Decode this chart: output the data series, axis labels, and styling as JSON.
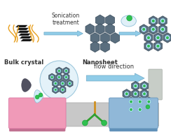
{
  "bg_color": "#ffffff",
  "sonication_label": "Sonication\ntreatment",
  "bulk_crystal_label": "Bulk crystal",
  "nanosheet_label": "Nanosheet",
  "flow_label": "flow direction",
  "hex_fc": "#5a6e7e",
  "hex_ec": "#3a4d5c",
  "bulk_color": "#111111",
  "bulk_line_color": "#333333",
  "wave_color": "#e8a020",
  "arrow_fc": "#90cce8",
  "arrow_ec": "#70aac8",
  "pink_pad": "#f09ab8",
  "blue_pad": "#90b8d8",
  "strip_fc": "#c8c8c8",
  "strip_ec": "#aaaaaa",
  "gray_pad": "#b0b8b0",
  "drop_fc": "#505060",
  "bubble_fc": "#e0f0f8",
  "bubble_ec": "#90c0d8",
  "dot_fc": "#c0e8f8",
  "dot_ec": "#70b0d0",
  "green_dot": "#30c050",
  "green_dot_ec": "#10a030",
  "ab_stem": "#d09020",
  "ab_arm": "#30a030",
  "label_fs": 6.0,
  "sonication_fs": 5.5
}
